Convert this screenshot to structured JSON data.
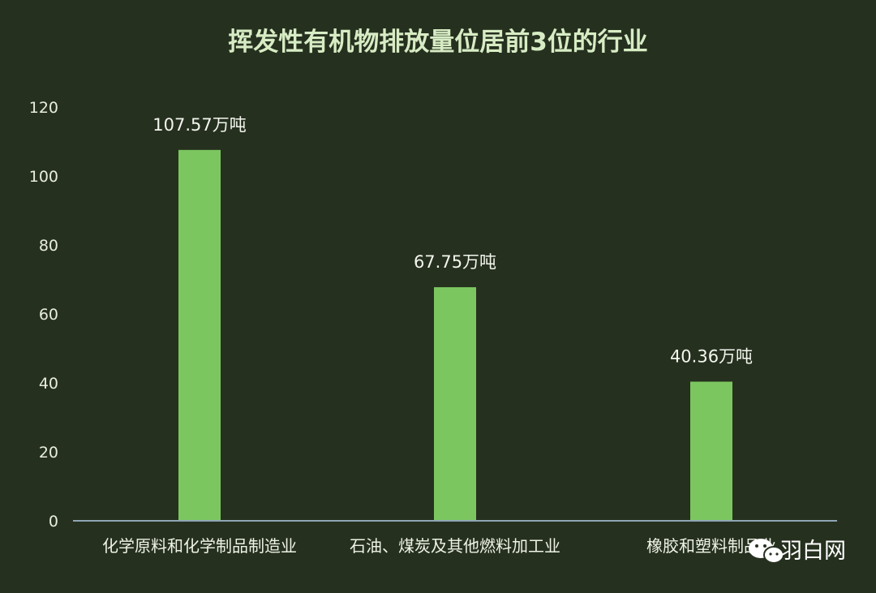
{
  "chart_data": {
    "type": "bar",
    "title": "挥发性有机物排放量位居前3位的行业",
    "categories": [
      "化学原料和化学制品制造业",
      "石油、煤炭及其他燃料加工业",
      "橡胶和塑料制品业"
    ],
    "values": [
      107.57,
      67.75,
      40.36
    ],
    "data_labels": [
      "107.57万吨",
      "67.75万吨",
      "40.36万吨"
    ],
    "ylim": [
      0,
      120
    ],
    "yticks": [
      0,
      20,
      40,
      60,
      80,
      100,
      120
    ],
    "grid": false,
    "legend": "none",
    "bar_color": "#7cc65f",
    "background": "#26301f"
  },
  "watermark": {
    "text": "羽白网",
    "icon": "wechat-icon"
  }
}
